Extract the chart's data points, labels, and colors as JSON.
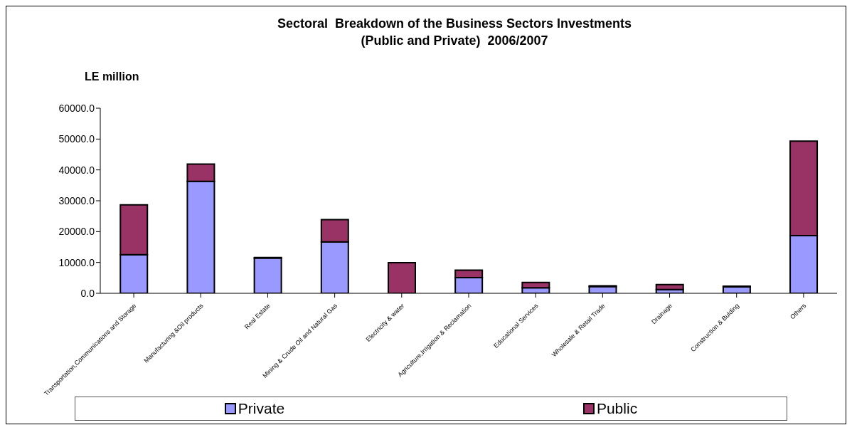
{
  "chart_data": {
    "type": "bar",
    "title": "Sectoral  Breakdown of the Business Sectors Investments (Public and Private)  2006/2007",
    "ylabel": "LE million",
    "categories": [
      "Transportation,Communications and Storage",
      "Manufacturing &Oil products",
      "Real Estate",
      "Mining & Crude Oil and Natural Gas",
      "Electricity & water",
      "Agriculture,Irrigation & Reclamation",
      "Educational Services",
      "Wholesale & Retail Trade",
      "Drainage",
      "Construction & Bulding",
      "Others"
    ],
    "series": [
      {
        "name": "Private",
        "color": "#9999ff",
        "values": [
          12500,
          36300,
          11400,
          16700,
          0,
          5100,
          1800,
          2200,
          1200,
          2100,
          18700
        ]
      },
      {
        "name": "Public",
        "color": "#993366",
        "values": [
          16200,
          5600,
          200,
          7200,
          9900,
          2400,
          1700,
          200,
          1600,
          200,
          30600
        ]
      }
    ],
    "stacked": true,
    "ylim": [
      0,
      60000
    ],
    "yticks": [
      {
        "value": 0,
        "label": "0.0"
      },
      {
        "value": 10000,
        "label": "10000.0"
      },
      {
        "value": 20000,
        "label": "20000.0"
      },
      {
        "value": 30000,
        "label": "30000.0"
      },
      {
        "value": 40000,
        "label": "40000.0"
      },
      {
        "value": 50000,
        "label": "50000.0"
      },
      {
        "value": 60000,
        "label": "60000.0"
      }
    ],
    "grid": false,
    "legend": "bottom"
  }
}
